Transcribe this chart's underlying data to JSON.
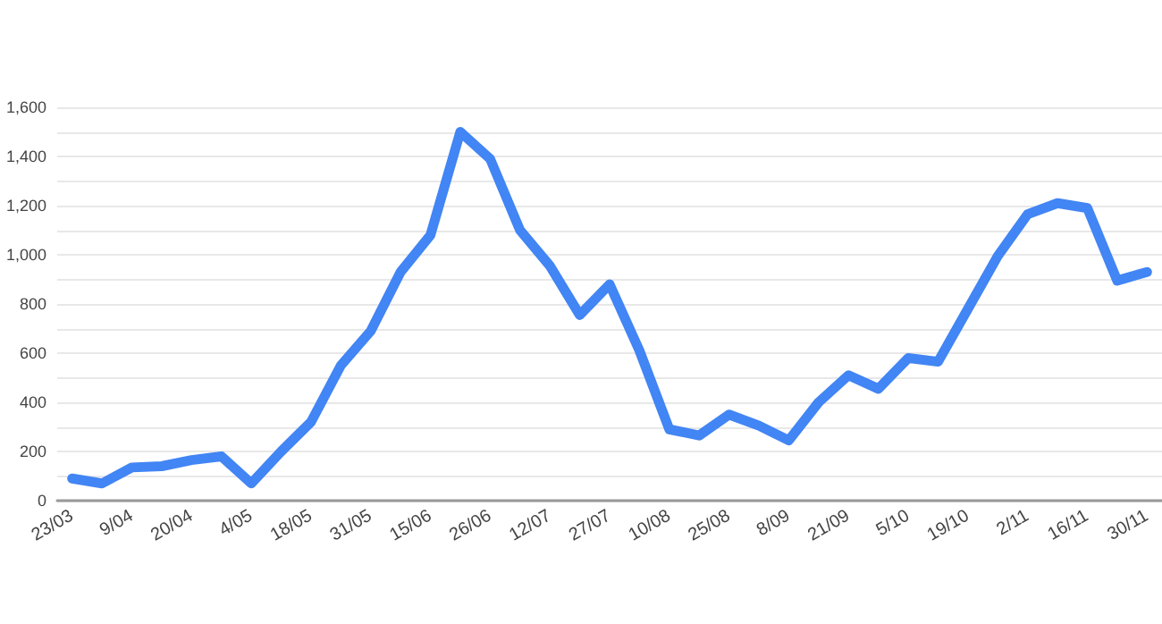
{
  "chart_data": {
    "type": "line",
    "categories": [
      "23/03",
      null,
      "9/04",
      null,
      "20/04",
      null,
      "4/05",
      null,
      "18/05",
      null,
      "31/05",
      null,
      "15/06",
      null,
      "26/06",
      null,
      "12/07",
      null,
      "27/07",
      null,
      "10/08",
      null,
      "25/08",
      null,
      "8/09",
      null,
      "21/09",
      null,
      "5/10",
      null,
      "19/10",
      null,
      "2/11",
      null,
      "16/11",
      null,
      "30/11"
    ],
    "series": [
      {
        "color": "#4285f4",
        "values": [
          90,
          70,
          135,
          140,
          165,
          180,
          70,
          200,
          320,
          550,
          690,
          930,
          1080,
          1500,
          1390,
          1100,
          955,
          755,
          880,
          610,
          290,
          265,
          350,
          305,
          245,
          400,
          510,
          455,
          580,
          565,
          780,
          995,
          1165,
          1210,
          1190,
          895,
          930
        ]
      }
    ],
    "ylim": [
      0,
      1600
    ],
    "yticks": [
      0,
      {
        "value": 100,
        "label": null
      },
      200,
      {
        "value": 300,
        "label": null
      },
      400,
      {
        "value": 500,
        "label": null
      },
      600,
      {
        "value": 700,
        "label": null
      },
      800,
      {
        "value": 900,
        "label": null
      },
      {
        "value": 1000,
        "label": "1,000"
      },
      {
        "value": 1100,
        "label": null
      },
      {
        "value": 1200,
        "label": "1,200"
      },
      {
        "value": 1300,
        "label": null
      },
      {
        "value": 1400,
        "label": "1,400"
      },
      {
        "value": 1500,
        "label": null
      },
      {
        "value": 1600,
        "label": "1,600"
      }
    ],
    "grid": "y",
    "marker": "none",
    "line_style": "solid"
  }
}
